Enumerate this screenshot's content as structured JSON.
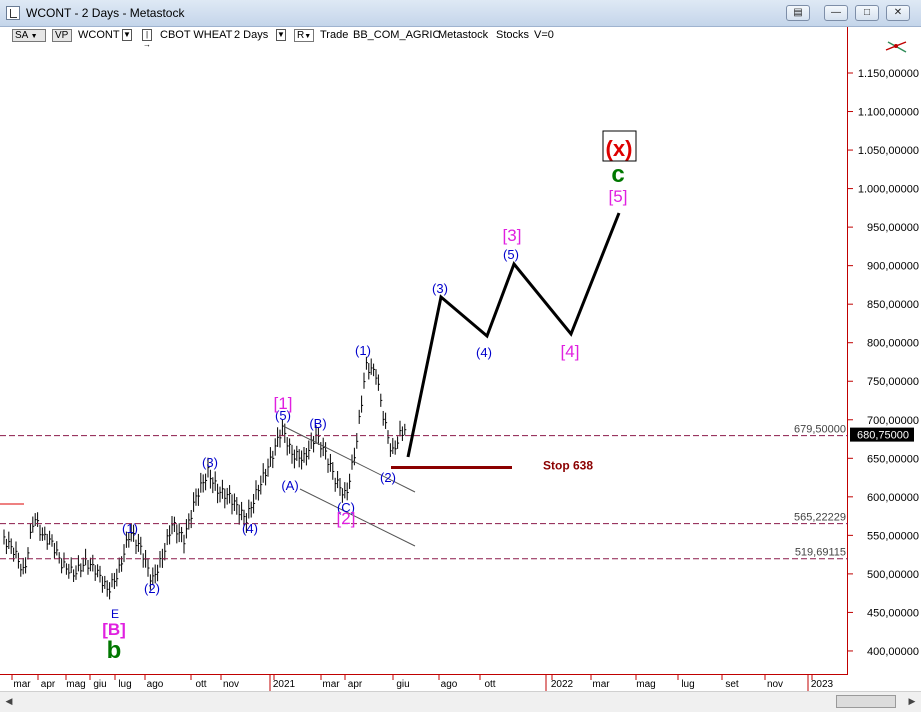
{
  "window": {
    "title": "WCONT - 2 Days - Metastock"
  },
  "toolbar": {
    "sa_label": "SA",
    "vp_label": "VP",
    "symbol": "WCONT",
    "security_name": "CBOT WHEAT",
    "periodicity": "2 Days",
    "r_label": "R",
    "trade_label": "Trade",
    "folder": "BB_COM_AGRIC",
    "source": "Metastock",
    "kind": "Stocks",
    "volume": "V=0"
  },
  "price_axis": {
    "ticks": [
      "1.150,00000",
      "1.100,00000",
      "1.050,00000",
      "1.000,00000",
      "950,00000",
      "900,00000",
      "850,00000",
      "800,00000",
      "750,00000",
      "700,00000",
      "650,00000",
      "600,00000",
      "550,00000",
      "500,00000",
      "450,00000",
      "400,00000"
    ],
    "current_price": "680,75000"
  },
  "time_axis": {
    "labels": [
      "mar",
      "apr",
      "mag",
      "giu",
      "lug",
      "ago",
      "ott",
      "nov",
      "2021",
      "mar",
      "apr",
      "giu",
      "ago",
      "ott",
      "2022",
      "mar",
      "mag",
      "lug",
      "set",
      "nov",
      "2023"
    ]
  },
  "levels": [
    {
      "label": "679,50000",
      "value": 679.5
    },
    {
      "label": "565,22229",
      "value": 565.22229
    },
    {
      "label": "519,69115",
      "value": 519.69115
    }
  ],
  "stop": {
    "label": "Stop 638",
    "value": 638
  },
  "wave_labels": {
    "e": "E",
    "B_bracket": "[B]",
    "b_small": "b",
    "w1": "(1)",
    "w2": "(2)",
    "w3": "(3)",
    "w4": "(4)",
    "w5": "(5)",
    "b1": "[1]",
    "A": "(A)",
    "B": "(B)",
    "C": "(C)",
    "b2": "[2]",
    "n1": "(1)",
    "n2": "(2)",
    "p3": "(3)",
    "p4": "(4)",
    "p5": "(5)",
    "b3": "[3]",
    "b4": "[4]",
    "b5": "[5]",
    "c": "c",
    "x": "(x)"
  },
  "colors": {
    "blue": "#0000cc",
    "magenta": "#e020e0",
    "green": "#007700",
    "red": "#dd0000",
    "stop": "#8b0000",
    "level": "#8b1a4a"
  }
}
